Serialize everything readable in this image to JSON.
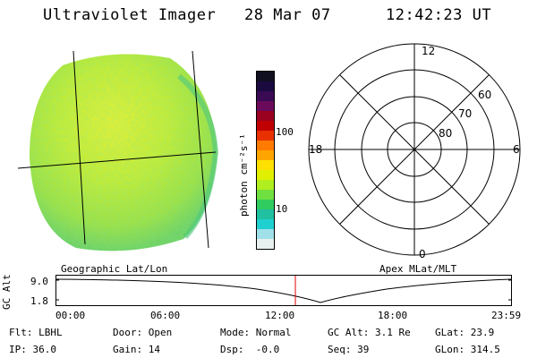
{
  "header": {
    "title": "Ultraviolet Imager",
    "date": "28 Mar 07",
    "time": "12:42:23 UT"
  },
  "colorbar": {
    "unit_label": "photon cm⁻²s⁻¹",
    "ticks": [
      "100",
      "10"
    ],
    "colors": [
      "#101020",
      "#1a0a40",
      "#3a0a55",
      "#6a0a5a",
      "#9a0020",
      "#c00000",
      "#e83000",
      "#ff7a00",
      "#ffa500",
      "#ffe000",
      "#e0f000",
      "#b0ee20",
      "#70e040",
      "#30cc60",
      "#20c0a0",
      "#20d0d0",
      "#a0e0e8",
      "#e8f0f0"
    ]
  },
  "polar_grid": {
    "mlt_labels": {
      "top": "12",
      "left": "18",
      "right": "6",
      "bottom": "0"
    },
    "lat_labels": [
      "60",
      "70",
      "80"
    ]
  },
  "altitude_panel": {
    "left_title": "Geographic Lat/Lon",
    "right_title": "Apex MLat/MLT",
    "ylabel": "GC Alt",
    "yticks": [
      "9.0",
      "1.8"
    ],
    "xticks": [
      "00:00",
      "06:00",
      "12:00",
      "18:00",
      "23:59"
    ]
  },
  "status": {
    "row1": [
      "Flt: LBHL",
      "Door: Open",
      "Mode: Normal",
      "GC Alt: 3.1 Re",
      "GLat: 23.9"
    ],
    "row2": [
      "IP: 36.0",
      "Gain: 14",
      "Dsp:  -0.0",
      "Seq: 39",
      "GLon: 314.5"
    ]
  }
}
